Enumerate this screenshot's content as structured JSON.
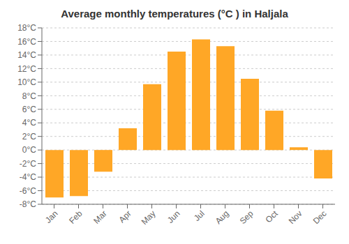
{
  "chart_data": {
    "type": "bar",
    "title": "Average monthly temperatures (°C ) in Haljala",
    "categories": [
      "Jan",
      "Feb",
      "Mar",
      "Apr",
      "May",
      "Jun",
      "Jul",
      "Aug",
      "Sep",
      "Oct",
      "Nov",
      "Dec"
    ],
    "values": [
      -7.0,
      -6.8,
      -3.2,
      3.2,
      9.7,
      14.5,
      16.3,
      15.3,
      10.5,
      5.8,
      0.4,
      -4.2
    ],
    "color": "#FFA726",
    "ylim": [
      -8,
      18
    ],
    "yticks": [
      {
        "value": -8,
        "label": "-8°C"
      },
      {
        "value": -6,
        "label": "-6°C"
      },
      {
        "value": -4,
        "label": "-4°C"
      },
      {
        "value": -2,
        "label": "-2°C"
      },
      {
        "value": 0,
        "label": "0°C"
      },
      {
        "value": 2,
        "label": "2°C"
      },
      {
        "value": 4,
        "label": "4°C"
      },
      {
        "value": 6,
        "label": "6°C"
      },
      {
        "value": 8,
        "label": "8°C"
      },
      {
        "value": 10,
        "label": "10°C"
      },
      {
        "value": 12,
        "label": "12°C"
      },
      {
        "value": 14,
        "label": "14°C"
      },
      {
        "value": 16,
        "label": "16°C"
      },
      {
        "value": 18,
        "label": "18°C"
      }
    ],
    "grid": true
  }
}
